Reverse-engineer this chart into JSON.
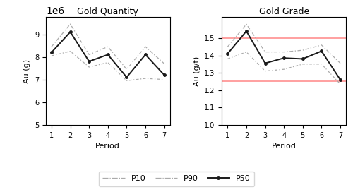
{
  "periods": [
    1,
    2,
    3,
    4,
    5,
    6,
    7
  ],
  "qty_p10": [
    8050000,
    8250000,
    7550000,
    7750000,
    6950000,
    7050000,
    7000000
  ],
  "qty_p90": [
    8450000,
    9450000,
    8100000,
    8450000,
    7450000,
    8450000,
    7700000
  ],
  "qty_p50": [
    8200000,
    9100000,
    7800000,
    8100000,
    7100000,
    8100000,
    7200000
  ],
  "grade_p10": [
    1.38,
    1.42,
    1.31,
    1.32,
    1.35,
    1.35,
    1.235
  ],
  "grade_p90": [
    1.45,
    1.58,
    1.42,
    1.42,
    1.43,
    1.46,
    1.355
  ],
  "grade_p50": [
    1.41,
    1.54,
    1.355,
    1.385,
    1.38,
    1.425,
    1.26
  ],
  "grade_hline1": 1.5,
  "grade_hline2": 1.25,
  "qty_ylim": [
    5000000,
    9750000
  ],
  "grade_ylim": [
    1.0,
    1.62
  ],
  "qty_yticks": [
    5000000,
    6000000,
    7000000,
    8000000,
    9000000
  ],
  "grade_yticks": [
    1.0,
    1.1,
    1.2,
    1.3,
    1.4,
    1.5
  ],
  "color_p10": "#aaaaaa",
  "color_p90": "#aaaaaa",
  "color_p50": "#1a1a1a",
  "hline_color": "#ff9999",
  "title_qty": "Gold Quantity",
  "title_grade": "Gold Grade",
  "xlabel": "Period",
  "ylabel_qty": "Au (g)",
  "ylabel_grade": "Au (g/t)"
}
